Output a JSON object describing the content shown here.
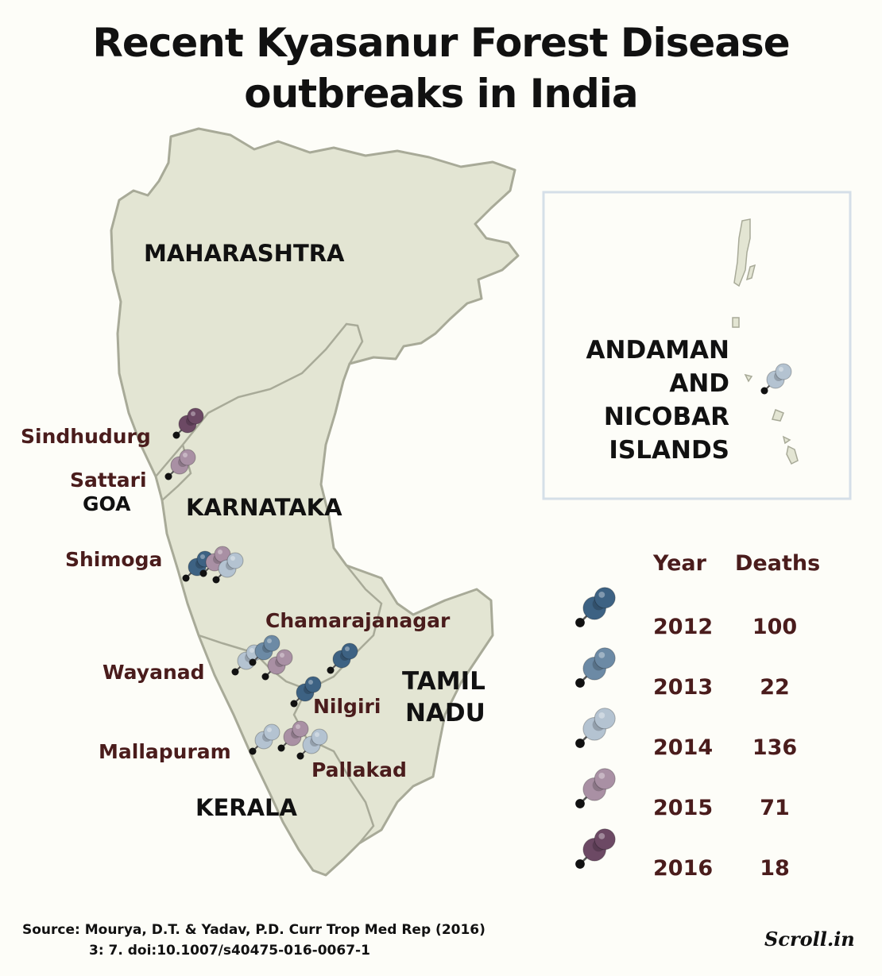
{
  "title": {
    "line1": "Recent Kyasanur Forest Disease",
    "line2": "outbreaks in India"
  },
  "states": {
    "maharashtra": "MAHARASHTRA",
    "goa": "GOA",
    "karnataka": "KARNATAKA",
    "tamil_nadu_1": "TAMIL",
    "tamil_nadu_2": "NADU",
    "kerala": "KERALA"
  },
  "inset": {
    "line1": "ANDAMAN",
    "line2": "AND",
    "line3": "NICOBAR",
    "line4": "ISLANDS"
  },
  "places": {
    "sindhudurg": "Sindhudurg",
    "sattari": "Sattari",
    "shimoga": "Shimoga",
    "chamarajanagar": "Chamarajanagar",
    "wayanad": "Wayanad",
    "nilgiri": "Nilgiri",
    "mallapuram": "Mallapuram",
    "pallakad": "Pallakad"
  },
  "legend": {
    "year_header": "Year",
    "deaths_header": "Deaths",
    "rows": [
      {
        "year": "2012",
        "deaths": "100",
        "color": "#3d6283"
      },
      {
        "year": "2013",
        "deaths": "22",
        "color": "#6c8aa5"
      },
      {
        "year": "2014",
        "deaths": "136",
        "color": "#b4c3d1"
      },
      {
        "year": "2015",
        "deaths": "71",
        "color": "#a990a4"
      },
      {
        "year": "2016",
        "deaths": "18",
        "color": "#6c4964"
      }
    ]
  },
  "outbreaks": {
    "Sindhudurg": [
      "2016"
    ],
    "Sattari": [
      "2015"
    ],
    "Shimoga": [
      "2012",
      "2015",
      "2014"
    ],
    "Chamarajanagar": [
      "2012"
    ],
    "Wayanad": [
      "2014",
      "2013",
      "2015"
    ],
    "Nilgiri": [
      "2012"
    ],
    "Mallapuram": [
      "2014"
    ],
    "Pallakad": [
      "2015",
      "2014"
    ],
    "Andaman and Nicobar Islands": [
      "2014"
    ]
  },
  "source": {
    "line1": "Source:  Mourya, D.T. & Yadav, P.D. Curr Trop Med Rep (2016)",
    "line2": "3: 7. doi:10.1007/s40475-016-0067-1"
  },
  "credit": "Scroll.in",
  "colors": {
    "land": "#e3e5d3",
    "border": "#a8aa98",
    "background": "#fdfdf8",
    "inset_frame": "#d5dfe8",
    "place_text": "#4a1c1c"
  }
}
